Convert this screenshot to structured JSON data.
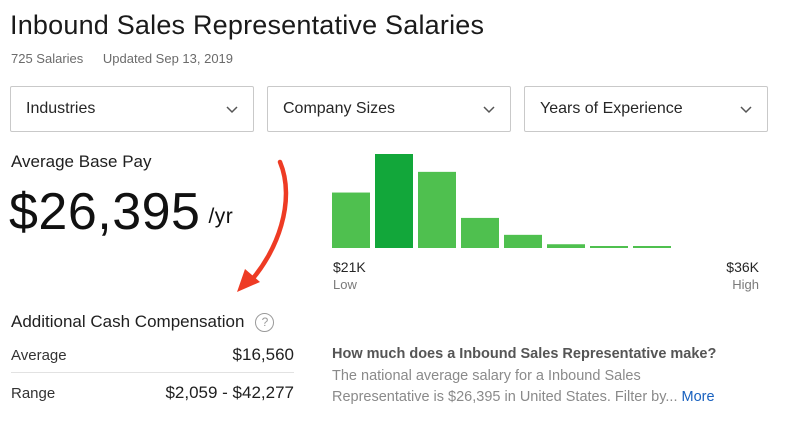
{
  "header": {
    "title": "Inbound Sales Representative Salaries",
    "salary_count": "725 Salaries",
    "updated": "Updated Sep 13, 2019"
  },
  "filters": [
    {
      "label": "Industries"
    },
    {
      "label": "Company Sizes"
    },
    {
      "label": "Years of Experience"
    }
  ],
  "base_pay": {
    "label": "Average Base Pay",
    "amount": "$26,395",
    "unit": "/yr"
  },
  "histogram": {
    "low_value": "$21K",
    "low_label": "Low",
    "high_value": "$36K",
    "high_label": "High",
    "relative_heights": [
      0.59,
      1.0,
      0.81,
      0.32,
      0.14,
      0.04,
      0.02,
      0.02
    ],
    "highlight_index": 1,
    "colors": {
      "bar": "#4fc04f",
      "highlight": "#12a73a"
    }
  },
  "additional_comp": {
    "title": "Additional Cash Compensation",
    "rows": [
      {
        "label": "Average",
        "value": "$16,560"
      },
      {
        "label": "Range",
        "value": "$2,059 - $42,277"
      }
    ]
  },
  "about": {
    "question": "How much does a Inbound Sales Representative make?",
    "text_line1": "The national average salary for a Inbound Sales",
    "text_line2": "Representative is $26,395 in United States. Filter by...",
    "more_label": "More"
  },
  "colors": {
    "annotation_arrow": "#ee3b24",
    "link": "#1861bf"
  }
}
